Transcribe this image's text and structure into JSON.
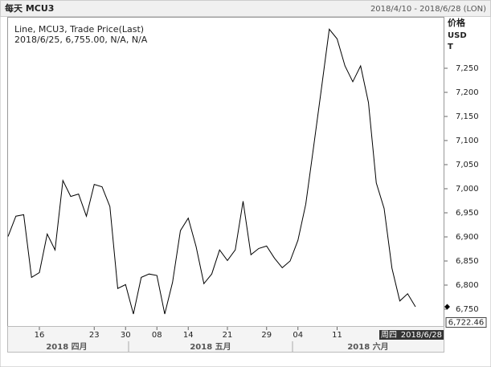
{
  "header": {
    "title": "每天 MCU3",
    "range": "2018/4/10 - 2018/6/28 (LON)"
  },
  "chart_data": {
    "type": "line",
    "info": [
      "Line, MCU3, Trade Price(Last)",
      "2018/6/25, 6,755.00, N/A, N/A"
    ],
    "y_axis_label": [
      "价格",
      "USD",
      "T"
    ],
    "categories": [
      null,
      null,
      null,
      null,
      "16",
      null,
      null,
      null,
      null,
      null,
      null,
      "23",
      null,
      null,
      null,
      "30",
      null,
      null,
      null,
      "08",
      null,
      null,
      null,
      "14",
      null,
      null,
      null,
      null,
      "21",
      null,
      null,
      null,
      null,
      "29",
      null,
      null,
      null,
      "04",
      null,
      null,
      null,
      null,
      "11",
      null,
      null,
      null,
      null,
      null,
      null,
      null,
      null,
      null,
      null,
      null,
      null,
      null
    ],
    "months": [
      "2018 四月",
      "2018 五月",
      "2018 六月"
    ],
    "values": [
      6901,
      6943,
      6946,
      6816,
      6826,
      6906,
      6873,
      7017,
      6984,
      6989,
      6943,
      7009,
      7004,
      6963,
      6793,
      6801,
      6740,
      6816,
      6823,
      6820,
      6740,
      6806,
      6913,
      6939,
      6880,
      6803,
      6823,
      6873,
      6851,
      6873,
      6974,
      6863,
      6876,
      6881,
      6856,
      6836,
      6850,
      6893,
      6968,
      7087,
      7208,
      7331,
      7311,
      7255,
      7222,
      7255,
      7179,
      7012,
      6959,
      6835,
      6767,
      6782,
      6755,
      null,
      null,
      null
    ],
    "color": "#000000",
    "ylim": [
      6715,
      7355
    ],
    "yticks": [
      {
        "value": 6750,
        "label": "6,750"
      },
      {
        "value": 6800,
        "label": "6,800"
      },
      {
        "value": 6850,
        "label": "6,850"
      },
      {
        "value": 6900,
        "label": "6,900"
      },
      {
        "value": 6950,
        "label": "6,950"
      },
      {
        "value": 7000,
        "label": "7,000"
      },
      {
        "value": 7050,
        "label": "7,050"
      },
      {
        "value": 7100,
        "label": "7,100"
      },
      {
        "value": 7150,
        "label": "7,150"
      },
      {
        "value": 7200,
        "label": "7,200"
      },
      {
        "value": 7250,
        "label": "7,250"
      }
    ],
    "last_price": {
      "value": 6722.46,
      "label": "6,722.46"
    },
    "cursor": [
      "周四",
      "2018/6/28"
    ]
  }
}
